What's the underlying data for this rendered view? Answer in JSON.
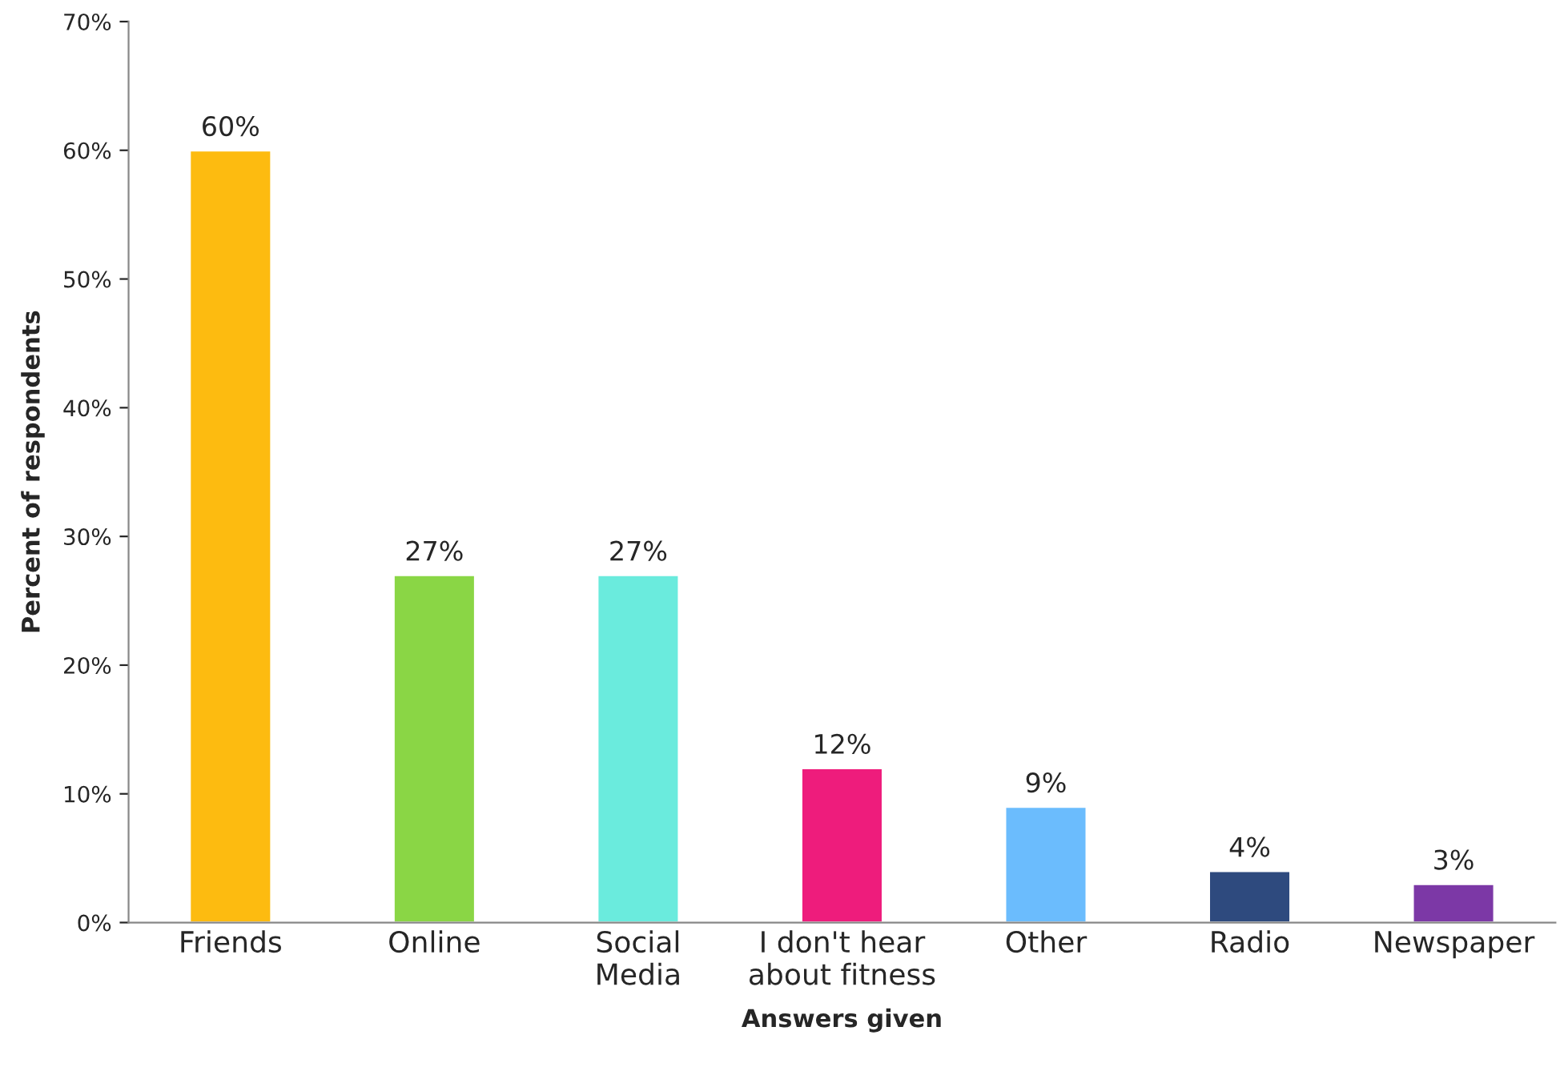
{
  "chart_data": {
    "type": "bar",
    "xlabel": "Answers given",
    "ylabel": "Percent of respondents",
    "categories": [
      "Friends",
      "Online",
      "Social\nMedia",
      "I don't hear\nabout fitness",
      "Other",
      "Radio",
      "Newspaper"
    ],
    "values": [
      60,
      27,
      27,
      12,
      9,
      4,
      3
    ],
    "colors": [
      "#fdbb10",
      "#8ad645",
      "#6aebdd",
      "#ee1c7c",
      "#6bbcfd",
      "#2e4a7e",
      "#7c38a6"
    ],
    "value_labels": [
      "60%",
      "27%",
      "27%",
      "12%",
      "9%",
      "4%",
      "3%"
    ],
    "ylim": [
      0,
      70
    ],
    "yticks": [
      {
        "value": 0,
        "label": "0%"
      },
      {
        "value": 10,
        "label": "10%"
      },
      {
        "value": 20,
        "label": "20%"
      },
      {
        "value": 30,
        "label": "30%"
      },
      {
        "value": 40,
        "label": "40%"
      },
      {
        "value": 50,
        "label": "50%"
      },
      {
        "value": 60,
        "label": "60%"
      },
      {
        "value": 70,
        "label": "70%"
      }
    ],
    "grid": false,
    "legend": false
  }
}
